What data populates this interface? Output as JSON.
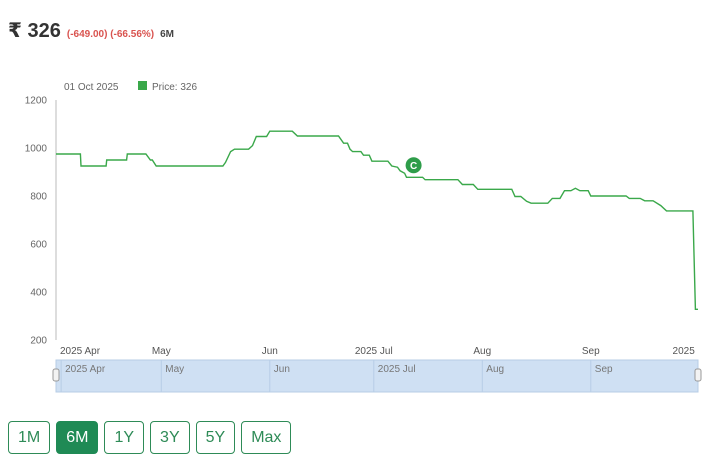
{
  "header": {
    "currency_symbol": "₹",
    "price": "326",
    "change": "(-649.00) (-66.56%)",
    "period": "6M"
  },
  "legend": {
    "date": "01 Oct 2025",
    "series_label": "Price: 326"
  },
  "marker": {
    "label": "C"
  },
  "colors": {
    "line": "#3aa84a",
    "accent": "#1f8a55",
    "navigator": "#cfe0f3",
    "negative": "#d9534f"
  },
  "range_buttons": [
    {
      "label": "1M",
      "active": false
    },
    {
      "label": "6M",
      "active": true
    },
    {
      "label": "1Y",
      "active": false
    },
    {
      "label": "3Y",
      "active": false
    },
    {
      "label": "5Y",
      "active": false
    },
    {
      "label": "Max",
      "active": false
    }
  ],
  "chart_data": {
    "type": "line",
    "y_ticks": [
      1200,
      1000,
      800,
      600,
      400,
      200
    ],
    "ylim": [
      200,
      1200
    ],
    "xlim": [
      0,
      100
    ],
    "x_ticks": [
      {
        "label": "2025 Apr",
        "x": 0.8
      },
      {
        "label": "May",
        "x": 16.4
      },
      {
        "label": "Jun",
        "x": 33.3
      },
      {
        "label": "2025 Jul",
        "x": 49.5
      },
      {
        "label": "Aug",
        "x": 66.4
      },
      {
        "label": "Sep",
        "x": 83.3
      },
      {
        "label": "2025",
        "x": 99.5
      }
    ],
    "navigator_ticks": [
      {
        "label": "2025 Apr",
        "x": 0.8
      },
      {
        "label": "May",
        "x": 16.4
      },
      {
        "label": "Jun",
        "x": 33.3
      },
      {
        "label": "2025 Jul",
        "x": 49.5
      },
      {
        "label": "Aug",
        "x": 66.4
      },
      {
        "label": "Sep",
        "x": 83.3
      }
    ],
    "marker_point": {
      "x": 55.7,
      "y": 878
    },
    "series": [
      {
        "values": [
          [
            0,
            975
          ],
          [
            3.8,
            975
          ],
          [
            3.9,
            925
          ],
          [
            7.8,
            925
          ],
          [
            7.9,
            950
          ],
          [
            11.0,
            950
          ],
          [
            11.1,
            975
          ],
          [
            14.0,
            975
          ],
          [
            14.7,
            950
          ],
          [
            15.0,
            950
          ],
          [
            15.6,
            925
          ],
          [
            26.0,
            925
          ],
          [
            26.4,
            940
          ],
          [
            27.2,
            985
          ],
          [
            27.8,
            995
          ],
          [
            30.0,
            995
          ],
          [
            30.6,
            1010
          ],
          [
            31.2,
            1048
          ],
          [
            32.8,
            1048
          ],
          [
            33.3,
            1070
          ],
          [
            36.8,
            1070
          ],
          [
            37.6,
            1050
          ],
          [
            44.0,
            1050
          ],
          [
            44.8,
            1020
          ],
          [
            45.4,
            1020
          ],
          [
            45.8,
            995
          ],
          [
            46.2,
            985
          ],
          [
            47.5,
            985
          ],
          [
            47.9,
            970
          ],
          [
            48.8,
            970
          ],
          [
            49.2,
            945
          ],
          [
            51.7,
            945
          ],
          [
            52.3,
            925
          ],
          [
            53.2,
            920
          ],
          [
            53.6,
            905
          ],
          [
            54.3,
            895
          ],
          [
            54.6,
            878
          ],
          [
            57.1,
            878
          ],
          [
            57.5,
            868
          ],
          [
            62.6,
            868
          ],
          [
            63.3,
            848
          ],
          [
            65.0,
            848
          ],
          [
            65.7,
            828
          ],
          [
            71.0,
            828
          ],
          [
            71.5,
            798
          ],
          [
            72.4,
            798
          ],
          [
            73.3,
            778
          ],
          [
            74.0,
            770
          ],
          [
            76.6,
            770
          ],
          [
            77.3,
            790
          ],
          [
            78.5,
            790
          ],
          [
            79.2,
            822
          ],
          [
            80.2,
            822
          ],
          [
            80.9,
            832
          ],
          [
            81.6,
            822
          ],
          [
            82.9,
            822
          ],
          [
            83.3,
            800
          ],
          [
            88.8,
            800
          ],
          [
            89.3,
            790
          ],
          [
            91.0,
            790
          ],
          [
            91.7,
            780
          ],
          [
            93.0,
            780
          ],
          [
            94.2,
            760
          ],
          [
            95.1,
            738
          ],
          [
            99.2,
            738
          ],
          [
            99.6,
            328
          ],
          [
            100.0,
            328
          ]
        ]
      }
    ]
  }
}
